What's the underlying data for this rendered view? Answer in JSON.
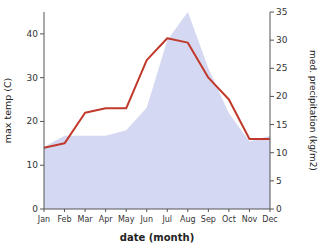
{
  "chart_data": {
    "type": "line",
    "xlabel": "date (month)",
    "ylabel": "max temp (C)",
    "y2label": "med. precipitation (kg/m2)",
    "categories": [
      "Jan",
      "Feb",
      "Mar",
      "Apr",
      "May",
      "Jun",
      "Jul",
      "Aug",
      "Sep",
      "Oct",
      "Nov",
      "Dec"
    ],
    "series": [
      {
        "type": "area",
        "axis": "y2",
        "color": "#b0b8e8",
        "values": [
          11,
          13,
          13,
          13,
          14,
          18,
          30,
          35,
          25,
          17,
          12,
          13
        ]
      },
      {
        "type": "line",
        "color": "#c0392b",
        "values": [
          14,
          15,
          22,
          23,
          23,
          34,
          39,
          38,
          30,
          25,
          16,
          16
        ]
      }
    ],
    "ylim": [
      0,
      45
    ],
    "yticks": [
      0,
      10,
      20,
      30,
      40
    ],
    "y2lim": [
      0,
      35
    ],
    "y2ticks": [
      0,
      5,
      10,
      15,
      20,
      25,
      30,
      35
    ],
    "grid": false
  }
}
